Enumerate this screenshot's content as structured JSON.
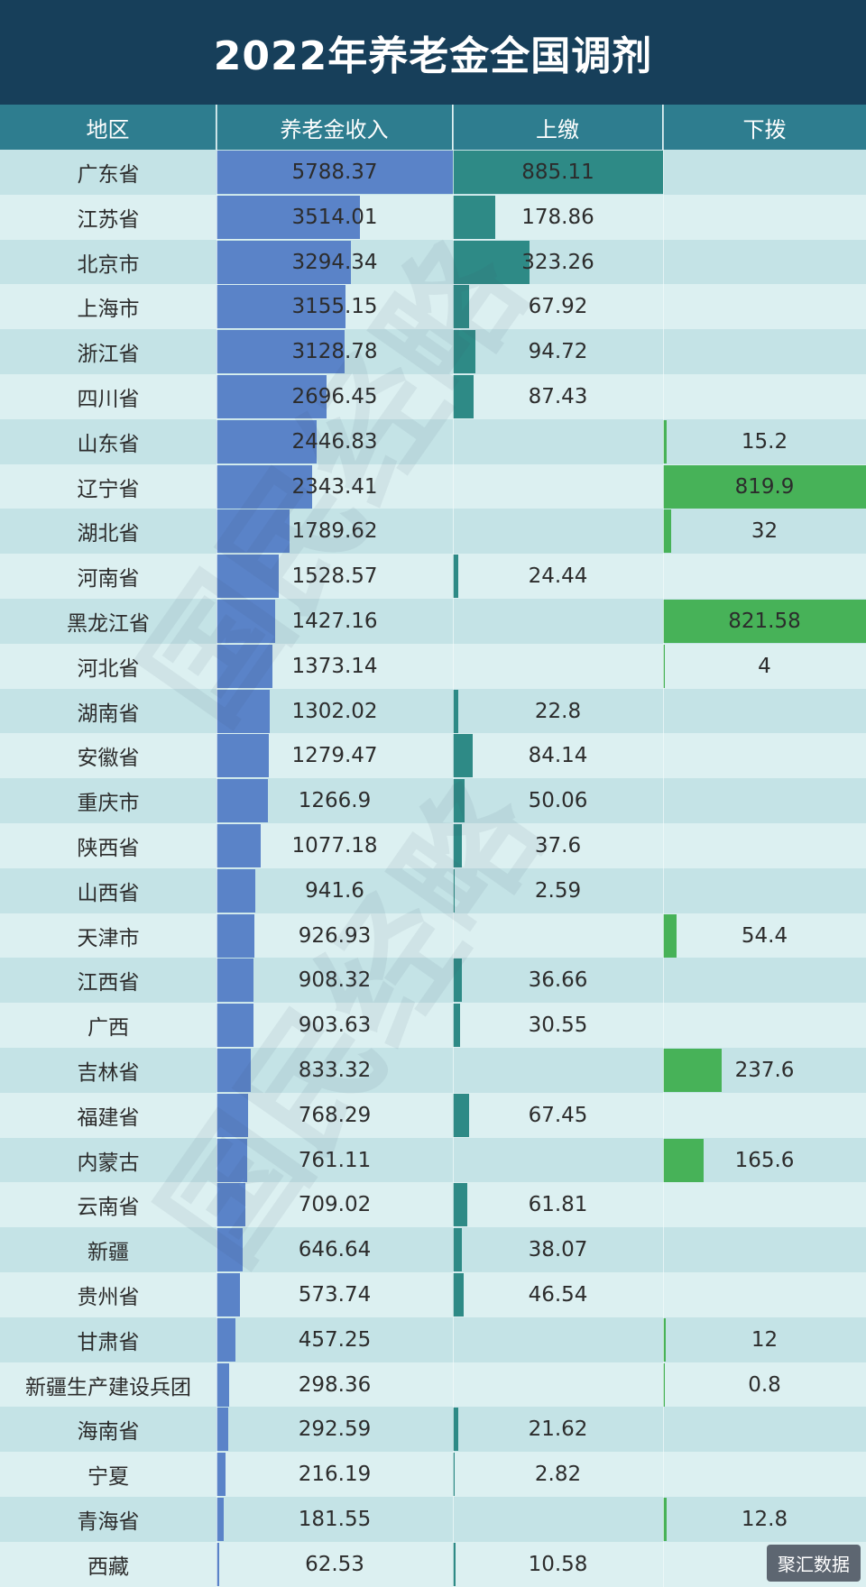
{
  "title": "2022年养老金全国调剂",
  "headers": {
    "region": "地区",
    "income": "养老金收入",
    "up": "上缴",
    "down": "下拨"
  },
  "watermark": "国民经略",
  "footer_logo": "聚汇数据",
  "colors": {
    "title_bg": "#173f5a",
    "header_bg": "#2e7d8f",
    "income_bar": "#5a83c8",
    "up_bar": "#2e8a86",
    "down_bar": "#47b258",
    "row_odd": "#c4e3e6",
    "row_even": "#dcf0f1"
  },
  "chart_data": {
    "type": "table",
    "title": "2022年养老金全国调剂",
    "columns": [
      "地区",
      "养老金收入",
      "上缴",
      "下拨"
    ],
    "rows": [
      {
        "region": "广东省",
        "income": "5788.37",
        "up": "885.11",
        "down": ""
      },
      {
        "region": "江苏省",
        "income": "3514.01",
        "up": "178.86",
        "down": ""
      },
      {
        "region": "北京市",
        "income": "3294.34",
        "up": "323.26",
        "down": ""
      },
      {
        "region": "上海市",
        "income": "3155.15",
        "up": "67.92",
        "down": ""
      },
      {
        "region": "浙江省",
        "income": "3128.78",
        "up": "94.72",
        "down": ""
      },
      {
        "region": "四川省",
        "income": "2696.45",
        "up": "87.43",
        "down": ""
      },
      {
        "region": "山东省",
        "income": "2446.83",
        "up": "",
        "down": "15.2"
      },
      {
        "region": "辽宁省",
        "income": "2343.41",
        "up": "",
        "down": "819.9"
      },
      {
        "region": "湖北省",
        "income": "1789.62",
        "up": "",
        "down": "32"
      },
      {
        "region": "河南省",
        "income": "1528.57",
        "up": "24.44",
        "down": ""
      },
      {
        "region": "黑龙江省",
        "income": "1427.16",
        "up": "",
        "down": "821.58"
      },
      {
        "region": "河北省",
        "income": "1373.14",
        "up": "",
        "down": "4"
      },
      {
        "region": "湖南省",
        "income": "1302.02",
        "up": "22.8",
        "down": ""
      },
      {
        "region": "安徽省",
        "income": "1279.47",
        "up": "84.14",
        "down": ""
      },
      {
        "region": "重庆市",
        "income": "1266.9",
        "up": "50.06",
        "down": ""
      },
      {
        "region": "陕西省",
        "income": "1077.18",
        "up": "37.6",
        "down": ""
      },
      {
        "region": "山西省",
        "income": "941.6",
        "up": "2.59",
        "down": ""
      },
      {
        "region": "天津市",
        "income": "926.93",
        "up": "",
        "down": "54.4"
      },
      {
        "region": "江西省",
        "income": "908.32",
        "up": "36.66",
        "down": ""
      },
      {
        "region": "广西",
        "income": "903.63",
        "up": "30.55",
        "down": ""
      },
      {
        "region": "吉林省",
        "income": "833.32",
        "up": "",
        "down": "237.6"
      },
      {
        "region": "福建省",
        "income": "768.29",
        "up": "67.45",
        "down": ""
      },
      {
        "region": "内蒙古",
        "income": "761.11",
        "up": "",
        "down": "165.6"
      },
      {
        "region": "云南省",
        "income": "709.02",
        "up": "61.81",
        "down": ""
      },
      {
        "region": "新疆",
        "income": "646.64",
        "up": "38.07",
        "down": ""
      },
      {
        "region": "贵州省",
        "income": "573.74",
        "up": "46.54",
        "down": ""
      },
      {
        "region": "甘肃省",
        "income": "457.25",
        "up": "",
        "down": "12"
      },
      {
        "region": "新疆生产建设兵团",
        "income": "298.36",
        "up": "",
        "down": "0.8"
      },
      {
        "region": "海南省",
        "income": "292.59",
        "up": "21.62",
        "down": ""
      },
      {
        "region": "宁夏",
        "income": "216.19",
        "up": "2.82",
        "down": ""
      },
      {
        "region": "青海省",
        "income": "181.55",
        "up": "",
        "down": "12.8"
      },
      {
        "region": "西藏",
        "income": "62.53",
        "up": "10.58",
        "down": ""
      }
    ]
  }
}
